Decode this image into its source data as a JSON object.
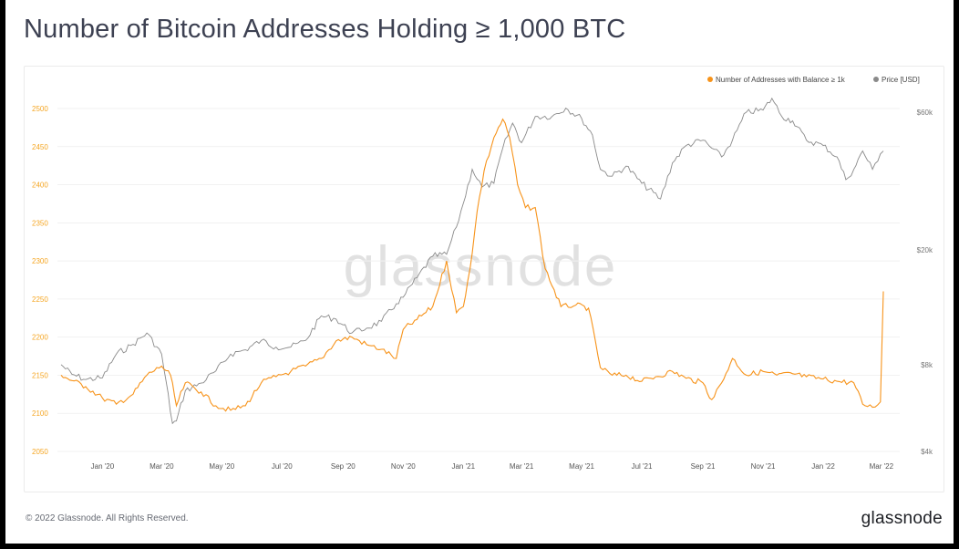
{
  "title": "Number of Bitcoin Addresses Holding ≥ 1,000 BTC",
  "footer": {
    "copyright": "© 2022 Glassnode. All Rights Reserved.",
    "brand": "glassnode"
  },
  "watermark": "glassnode",
  "colors": {
    "addresses": "#f7931a",
    "price": "#8a8a8a",
    "title": "#3d4152",
    "tick": "#f5a623",
    "price_tick": "#777777"
  },
  "chart_data": {
    "type": "line",
    "legend_position": "top-right",
    "x_tick_labels": [
      "Jan '20",
      "Mar '20",
      "May '20",
      "Jul '20",
      "Sep '20",
      "Nov '20",
      "Jan '21",
      "Mar '21",
      "May '21",
      "Jul '21",
      "Sep '21",
      "Nov '21",
      "Jan '22",
      "Mar '22"
    ],
    "y_left_ticks": [
      "2050",
      "2100",
      "2150",
      "2200",
      "2250",
      "2300",
      "2350",
      "2400",
      "2450",
      "2500"
    ],
    "y_left_range": [
      2050,
      2500
    ],
    "y_right_ticks": [
      "$4k",
      "$8k",
      "$20k",
      "$60k"
    ],
    "y_right_scale": "log",
    "y_right_range": [
      4000,
      60000
    ],
    "series": [
      {
        "name": "Number of Addresses with Balance ≥ 1k",
        "axis": "left",
        "points": [
          [
            "2019-11-20",
            2150
          ],
          [
            "2019-12-01",
            2143
          ],
          [
            "2019-12-15",
            2135
          ],
          [
            "2020-01-01",
            2120
          ],
          [
            "2020-01-15",
            2112
          ],
          [
            "2020-02-01",
            2125
          ],
          [
            "2020-02-15",
            2150
          ],
          [
            "2020-03-01",
            2162
          ],
          [
            "2020-03-10",
            2150
          ],
          [
            "2020-03-16",
            2110
          ],
          [
            "2020-03-25",
            2140
          ],
          [
            "2020-04-10",
            2128
          ],
          [
            "2020-04-25",
            2110
          ],
          [
            "2020-05-10",
            2104
          ],
          [
            "2020-05-25",
            2110
          ],
          [
            "2020-06-10",
            2140
          ],
          [
            "2020-06-25",
            2148
          ],
          [
            "2020-07-10",
            2155
          ],
          [
            "2020-07-25",
            2162
          ],
          [
            "2020-08-10",
            2172
          ],
          [
            "2020-08-25",
            2195
          ],
          [
            "2020-09-10",
            2200
          ],
          [
            "2020-09-25",
            2190
          ],
          [
            "2020-10-10",
            2184
          ],
          [
            "2020-10-25",
            2172
          ],
          [
            "2020-11-01",
            2210
          ],
          [
            "2020-11-15",
            2223
          ],
          [
            "2020-12-01",
            2240
          ],
          [
            "2020-12-15",
            2300
          ],
          [
            "2020-12-25",
            2232
          ],
          [
            "2021-01-01",
            2240
          ],
          [
            "2021-01-10",
            2310
          ],
          [
            "2021-01-15",
            2365
          ],
          [
            "2021-01-22",
            2418
          ],
          [
            "2021-02-01",
            2462
          ],
          [
            "2021-02-10",
            2486
          ],
          [
            "2021-02-17",
            2462
          ],
          [
            "2021-02-25",
            2400
          ],
          [
            "2021-03-05",
            2370
          ],
          [
            "2021-03-15",
            2370
          ],
          [
            "2021-03-25",
            2290
          ],
          [
            "2021-04-10",
            2240
          ],
          [
            "2021-04-25",
            2242
          ],
          [
            "2021-05-08",
            2238
          ],
          [
            "2021-05-20",
            2160
          ],
          [
            "2021-06-01",
            2150
          ],
          [
            "2021-06-15",
            2150
          ],
          [
            "2021-07-01",
            2142
          ],
          [
            "2021-07-15",
            2148
          ],
          [
            "2021-08-01",
            2155
          ],
          [
            "2021-08-15",
            2146
          ],
          [
            "2021-09-01",
            2140
          ],
          [
            "2021-09-10",
            2118
          ],
          [
            "2021-09-20",
            2140
          ],
          [
            "2021-10-01",
            2172
          ],
          [
            "2021-10-15",
            2150
          ],
          [
            "2021-11-01",
            2155
          ],
          [
            "2021-11-15",
            2150
          ],
          [
            "2021-12-01",
            2152
          ],
          [
            "2021-12-15",
            2148
          ],
          [
            "2022-01-01",
            2145
          ],
          [
            "2022-01-15",
            2142
          ],
          [
            "2022-02-01",
            2140
          ],
          [
            "2022-02-10",
            2112
          ],
          [
            "2022-02-20",
            2108
          ],
          [
            "2022-02-28",
            2115
          ],
          [
            "2022-03-03",
            2260
          ]
        ]
      },
      {
        "name": "Price [USD]",
        "axis": "right",
        "points": [
          [
            "2019-11-20",
            8000
          ],
          [
            "2019-12-01",
            7400
          ],
          [
            "2019-12-15",
            7100
          ],
          [
            "2020-01-01",
            7200
          ],
          [
            "2020-01-15",
            8700
          ],
          [
            "2020-02-01",
            9400
          ],
          [
            "2020-02-15",
            10300
          ],
          [
            "2020-03-01",
            8700
          ],
          [
            "2020-03-12",
            5000
          ],
          [
            "2020-03-16",
            5100
          ],
          [
            "2020-03-25",
            6500
          ],
          [
            "2020-04-10",
            6900
          ],
          [
            "2020-04-25",
            7600
          ],
          [
            "2020-05-10",
            8700
          ],
          [
            "2020-05-25",
            9000
          ],
          [
            "2020-06-10",
            9700
          ],
          [
            "2020-06-25",
            9200
          ],
          [
            "2020-07-10",
            9200
          ],
          [
            "2020-07-25",
            9700
          ],
          [
            "2020-08-10",
            11800
          ],
          [
            "2020-08-25",
            11500
          ],
          [
            "2020-09-10",
            10300
          ],
          [
            "2020-09-25",
            10700
          ],
          [
            "2020-10-10",
            11300
          ],
          [
            "2020-10-25",
            13000
          ],
          [
            "2020-11-01",
            13700
          ],
          [
            "2020-11-15",
            16000
          ],
          [
            "2020-12-01",
            19000
          ],
          [
            "2020-12-15",
            19300
          ],
          [
            "2020-12-25",
            24000
          ],
          [
            "2021-01-01",
            29000
          ],
          [
            "2021-01-10",
            38000
          ],
          [
            "2021-01-20",
            33000
          ],
          [
            "2021-02-01",
            34000
          ],
          [
            "2021-02-10",
            45000
          ],
          [
            "2021-02-20",
            55000
          ],
          [
            "2021-03-01",
            47000
          ],
          [
            "2021-03-15",
            58000
          ],
          [
            "2021-04-01",
            58000
          ],
          [
            "2021-04-15",
            62000
          ],
          [
            "2021-05-01",
            57000
          ],
          [
            "2021-05-12",
            50000
          ],
          [
            "2021-05-20",
            38000
          ],
          [
            "2021-06-01",
            36000
          ],
          [
            "2021-06-15",
            39000
          ],
          [
            "2021-07-01",
            34000
          ],
          [
            "2021-07-20",
            30000
          ],
          [
            "2021-08-01",
            40000
          ],
          [
            "2021-08-15",
            46000
          ],
          [
            "2021-09-01",
            48000
          ],
          [
            "2021-09-10",
            45000
          ],
          [
            "2021-09-20",
            42000
          ],
          [
            "2021-10-01",
            48000
          ],
          [
            "2021-10-15",
            60000
          ],
          [
            "2021-11-01",
            61000
          ],
          [
            "2021-11-10",
            67000
          ],
          [
            "2021-11-20",
            58000
          ],
          [
            "2021-12-01",
            56000
          ],
          [
            "2021-12-15",
            48000
          ],
          [
            "2022-01-01",
            46000
          ],
          [
            "2022-01-15",
            42000
          ],
          [
            "2022-01-24",
            35000
          ],
          [
            "2022-02-01",
            38000
          ],
          [
            "2022-02-10",
            44000
          ],
          [
            "2022-02-20",
            38000
          ],
          [
            "2022-02-28",
            43000
          ],
          [
            "2022-03-03",
            44000
          ]
        ]
      }
    ]
  }
}
